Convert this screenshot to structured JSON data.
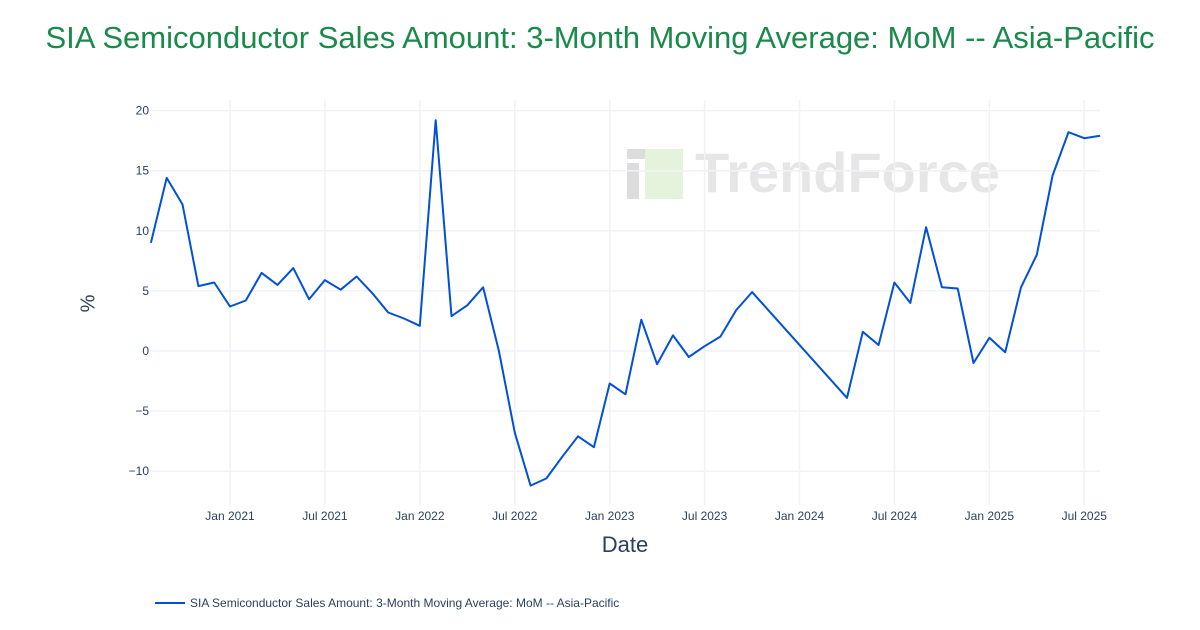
{
  "chart_data": {
    "type": "line",
    "title": "SIA Semiconductor Sales Amount: 3-Month Moving Average: MoM -- Asia-Pacific",
    "xlabel": "Date",
    "ylabel": "%",
    "ylim": [
      -12.5,
      21
    ],
    "grid": true,
    "legend_placement": "bottom-left",
    "color": "#0050d8",
    "watermark": "TrendForce",
    "yticks": [
      {
        "v": 20,
        "label": "20"
      },
      {
        "v": 15,
        "label": "15"
      },
      {
        "v": 10,
        "label": "10"
      },
      {
        "v": 5,
        "label": "5"
      },
      {
        "v": 0,
        "label": "0"
      },
      {
        "v": -5,
        "label": "−5"
      },
      {
        "v": -10,
        "label": "−10"
      }
    ],
    "xticks": [
      {
        "d": "2021-01",
        "label": "Jan 2021"
      },
      {
        "d": "2021-07",
        "label": "Jul 2021"
      },
      {
        "d": "2022-01",
        "label": "Jan 2022"
      },
      {
        "d": "2022-07",
        "label": "Jul 2022"
      },
      {
        "d": "2023-01",
        "label": "Jan 2023"
      },
      {
        "d": "2023-07",
        "label": "Jul 2023"
      },
      {
        "d": "2024-01",
        "label": "Jan 2024"
      },
      {
        "d": "2024-07",
        "label": "Jul 2024"
      },
      {
        "d": "2025-01",
        "label": "Jan 2025"
      },
      {
        "d": "2025-07",
        "label": "Jul 2025"
      }
    ],
    "series": [
      {
        "name": "SIA Semiconductor Sales Amount: 3-Month Moving Average: MoM -- Asia-Pacific",
        "x": [
          "2020-08",
          "2020-09",
          "2020-10",
          "2020-11",
          "2020-12",
          "2021-01",
          "2021-02",
          "2021-03",
          "2021-04",
          "2021-05",
          "2021-06",
          "2021-07",
          "2021-08",
          "2021-09",
          "2021-10",
          "2021-11",
          "2021-12",
          "2022-01",
          "2022-02",
          "2022-03",
          "2022-04",
          "2022-05",
          "2022-06",
          "2022-07",
          "2022-08",
          "2022-09",
          "2022-10",
          "2022-11",
          "2022-12",
          "2023-01",
          "2023-02",
          "2023-03",
          "2023-04",
          "2023-05",
          "2023-06",
          "2023-07",
          "2023-08",
          "2023-09",
          "2023-10",
          "2024-04",
          "2024-05",
          "2024-06",
          "2024-07",
          "2024-08",
          "2024-09",
          "2024-10",
          "2024-11",
          "2024-12",
          "2025-01",
          "2025-02",
          "2025-03",
          "2025-04",
          "2025-05",
          "2025-06",
          "2025-07",
          "2025-08"
        ],
        "y": [
          9.0,
          14.4,
          12.2,
          5.4,
          5.7,
          3.7,
          4.2,
          6.5,
          5.5,
          6.9,
          4.3,
          5.9,
          5.1,
          6.2,
          4.8,
          3.2,
          2.7,
          2.1,
          19.2,
          2.9,
          3.8,
          5.3,
          0.0,
          -6.8,
          -11.2,
          -10.6,
          -8.8,
          -7.1,
          -8.0,
          -2.7,
          -3.6,
          2.6,
          -1.1,
          1.3,
          -0.5,
          0.4,
          1.2,
          3.4,
          4.9,
          -3.9,
          1.6,
          0.5,
          5.7,
          4.0,
          10.3,
          5.3,
          5.2,
          -1.0,
          1.1,
          -0.1,
          5.3,
          8.0,
          14.6,
          18.2,
          17.7,
          17.9
        ]
      }
    ]
  }
}
